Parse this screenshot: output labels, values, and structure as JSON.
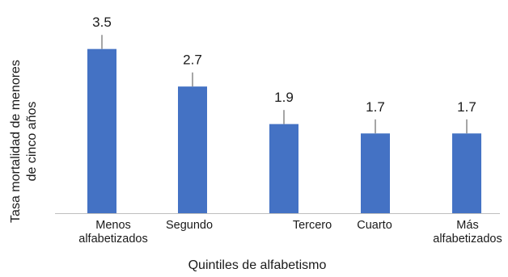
{
  "chart_data": {
    "type": "bar",
    "categories": [
      [
        "Menos",
        "alfabetizados"
      ],
      [
        "Segundo"
      ],
      [
        "Tercero"
      ],
      [
        "Cuarto"
      ],
      [
        "Más",
        "alfabetizados"
      ]
    ],
    "values": [
      3.5,
      2.7,
      1.9,
      1.7,
      1.7
    ],
    "error_upper": [
      3.8,
      3.0,
      2.2,
      2.0,
      2.0
    ],
    "data_labels": [
      "3.5",
      "2.7",
      "1.9",
      "1.7",
      "1.7"
    ],
    "title": "",
    "xlabel": "Quintiles de alfabetismo",
    "ylabel": [
      "Tasa mortalidad de menores",
      "de cinco años"
    ],
    "ylim": [
      0,
      4.2
    ],
    "grid": false,
    "legend": "none",
    "colors": {
      "bar": "#4472c4",
      "error_bar": "#a6a6a6",
      "axis": "#bfbfbf"
    }
  }
}
